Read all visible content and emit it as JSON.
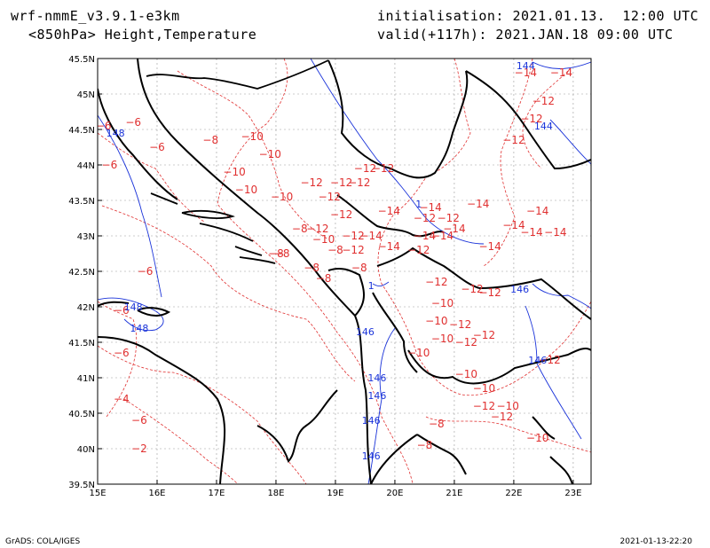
{
  "header": {
    "model": "wrf-nmmE_v3.9.1-e3km",
    "field": "<850hPa> Height,Temperature",
    "init": "initialisation: 2021.01.13.  12:00 UTC",
    "valid": "valid(+117h): 2021.JAN.18 09:00 UTC"
  },
  "footer": {
    "left": "GrADS: COLA/IGES",
    "right": "2021-01-13-22:20"
  },
  "axes": {
    "lon_range": [
      15,
      23.3
    ],
    "lat_range": [
      39.5,
      45.5
    ],
    "x_ticks": [
      "15E",
      "16E",
      "17E",
      "18E",
      "19E",
      "20E",
      "21E",
      "22E",
      "23E"
    ],
    "y_ticks": [
      "39.5N",
      "40N",
      "40.5N",
      "41N",
      "41.5N",
      "42N",
      "42.5N",
      "43N",
      "43.5N",
      "44N",
      "44.5N",
      "45N",
      "45.5N"
    ]
  },
  "colors": {
    "temperature": "#e03030",
    "height": "#1a33d9",
    "coast": "#000000",
    "grid": "#999999"
  },
  "temperature_labels": [
    {
      "t": "-6",
      "lon": 15.6,
      "lat": 44.55
    },
    {
      "t": "-6",
      "lon": 15.1,
      "lat": 44.5
    },
    {
      "t": "-6",
      "lon": 16.0,
      "lat": 44.2
    },
    {
      "t": "-6",
      "lon": 15.2,
      "lat": 43.95
    },
    {
      "t": "-8",
      "lon": 16.9,
      "lat": 44.3
    },
    {
      "t": "-10",
      "lon": 17.6,
      "lat": 44.35
    },
    {
      "t": "-10",
      "lon": 17.9,
      "lat": 44.1
    },
    {
      "t": "-10",
      "lon": 17.3,
      "lat": 43.85
    },
    {
      "t": "-10",
      "lon": 17.5,
      "lat": 43.6
    },
    {
      "t": "-10",
      "lon": 18.1,
      "lat": 43.5
    },
    {
      "t": "-12",
      "lon": 18.6,
      "lat": 43.7
    },
    {
      "t": "-12",
      "lon": 19.1,
      "lat": 43.7
    },
    {
      "t": "-12",
      "lon": 19.4,
      "lat": 43.7
    },
    {
      "t": "-12",
      "lon": 19.5,
      "lat": 43.9
    },
    {
      "t": "-12",
      "lon": 19.8,
      "lat": 43.9
    },
    {
      "t": "-12",
      "lon": 18.9,
      "lat": 43.5
    },
    {
      "t": "-12",
      "lon": 19.1,
      "lat": 43.25
    },
    {
      "t": "-14",
      "lon": 19.9,
      "lat": 43.3
    },
    {
      "t": "-12",
      "lon": 20.5,
      "lat": 43.2
    },
    {
      "t": "-12",
      "lon": 20.9,
      "lat": 43.2
    },
    {
      "t": "-14",
      "lon": 21.4,
      "lat": 43.4
    },
    {
      "t": "-14",
      "lon": 20.6,
      "lat": 43.35
    },
    {
      "t": "-12",
      "lon": 18.7,
      "lat": 43.05
    },
    {
      "t": "-12",
      "lon": 19.3,
      "lat": 42.95
    },
    {
      "t": "-8",
      "lon": 18.4,
      "lat": 43.05
    },
    {
      "t": "-10",
      "lon": 18.8,
      "lat": 42.9
    },
    {
      "t": "-14",
      "lon": 19.6,
      "lat": 42.95
    },
    {
      "t": "-14",
      "lon": 19.9,
      "lat": 42.8
    },
    {
      "t": "-14",
      "lon": 20.8,
      "lat": 42.95
    },
    {
      "t": "-12",
      "lon": 20.4,
      "lat": 42.75
    },
    {
      "t": "-8",
      "lon": 18.1,
      "lat": 42.7
    },
    {
      "t": "-8",
      "lon": 19.0,
      "lat": 42.75
    },
    {
      "t": "-12",
      "lon": 19.3,
      "lat": 42.75
    },
    {
      "t": "-8",
      "lon": 18.6,
      "lat": 42.5
    },
    {
      "t": "-8",
      "lon": 18.8,
      "lat": 42.35
    },
    {
      "t": "-8",
      "lon": 19.4,
      "lat": 42.5
    },
    {
      "t": "-12",
      "lon": 20.7,
      "lat": 42.3
    },
    {
      "t": "-12",
      "lon": 21.3,
      "lat": 42.2
    },
    {
      "t": "-12",
      "lon": 21.6,
      "lat": 42.15
    },
    {
      "t": "-10",
      "lon": 20.8,
      "lat": 42.0
    },
    {
      "t": "-10",
      "lon": 20.7,
      "lat": 41.75
    },
    {
      "t": "-12",
      "lon": 21.1,
      "lat": 41.7
    },
    {
      "t": "-12",
      "lon": 21.5,
      "lat": 41.55
    },
    {
      "t": "-10",
      "lon": 20.8,
      "lat": 41.5
    },
    {
      "t": "-12",
      "lon": 21.2,
      "lat": 41.45
    },
    {
      "t": "-10",
      "lon": 20.4,
      "lat": 41.3
    },
    {
      "t": "-10",
      "lon": 21.2,
      "lat": 41.0
    },
    {
      "t": "-10",
      "lon": 21.5,
      "lat": 40.8
    },
    {
      "t": "-12",
      "lon": 21.5,
      "lat": 40.55
    },
    {
      "t": "-10",
      "lon": 21.9,
      "lat": 40.55
    },
    {
      "t": "-12",
      "lon": 21.8,
      "lat": 40.4
    },
    {
      "t": "-8",
      "lon": 20.7,
      "lat": 40.3
    },
    {
      "t": "-8",
      "lon": 20.5,
      "lat": 40.0
    },
    {
      "t": "-10",
      "lon": 22.4,
      "lat": 40.1
    },
    {
      "t": "-14",
      "lon": 21.0,
      "lat": 43.05
    },
    {
      "t": "-14",
      "lon": 20.5,
      "lat": 42.95
    },
    {
      "t": "-14",
      "lon": 21.6,
      "lat": 42.8
    },
    {
      "t": "-14",
      "lon": 22.0,
      "lat": 43.1
    },
    {
      "t": "-14",
      "lon": 22.4,
      "lat": 43.3
    },
    {
      "t": "-14",
      "lon": 22.3,
      "lat": 43.0
    },
    {
      "t": "-14",
      "lon": 22.7,
      "lat": 43.0
    },
    {
      "t": "-12",
      "lon": 22.0,
      "lat": 44.3
    },
    {
      "t": "-12",
      "lon": 22.3,
      "lat": 44.6
    },
    {
      "t": "-12",
      "lon": 22.5,
      "lat": 44.85
    },
    {
      "t": "-14",
      "lon": 22.8,
      "lat": 45.25
    },
    {
      "t": "-14",
      "lon": 22.2,
      "lat": 45.25
    },
    {
      "t": "-12",
      "lon": 22.6,
      "lat": 41.2
    },
    {
      "t": "-4",
      "lon": 15.4,
      "lat": 40.65
    },
    {
      "t": "-6",
      "lon": 15.7,
      "lat": 40.35
    },
    {
      "t": "-6",
      "lon": 15.4,
      "lat": 41.3
    },
    {
      "t": "-6",
      "lon": 15.8,
      "lat": 42.45
    },
    {
      "t": "-6",
      "lon": 15.4,
      "lat": 41.9
    },
    {
      "t": "-8",
      "lon": 18.0,
      "lat": 42.7
    },
    {
      "t": "-2",
      "lon": 15.7,
      "lat": 39.95
    }
  ],
  "height_labels": [
    {
      "t": "148",
      "lon": 15.3,
      "lat": 44.4
    },
    {
      "t": "148",
      "lon": 15.6,
      "lat": 41.95
    },
    {
      "t": "148",
      "lon": 15.7,
      "lat": 41.65
    },
    {
      "t": "146",
      "lon": 19.5,
      "lat": 41.6
    },
    {
      "t": "146",
      "lon": 19.7,
      "lat": 40.95
    },
    {
      "t": "146",
      "lon": 19.7,
      "lat": 40.7
    },
    {
      "t": "146",
      "lon": 19.6,
      "lat": 40.35
    },
    {
      "t": "146",
      "lon": 19.6,
      "lat": 39.85
    },
    {
      "t": "146",
      "lon": 22.1,
      "lat": 42.2
    },
    {
      "t": "146",
      "lon": 22.4,
      "lat": 41.2
    },
    {
      "t": "144",
      "lon": 22.2,
      "lat": 45.35
    },
    {
      "t": "144",
      "lon": 22.5,
      "lat": 44.5
    },
    {
      "t": "1",
      "lon": 20.4,
      "lat": 43.4
    },
    {
      "t": "1",
      "lon": 19.6,
      "lat": 42.25
    }
  ]
}
